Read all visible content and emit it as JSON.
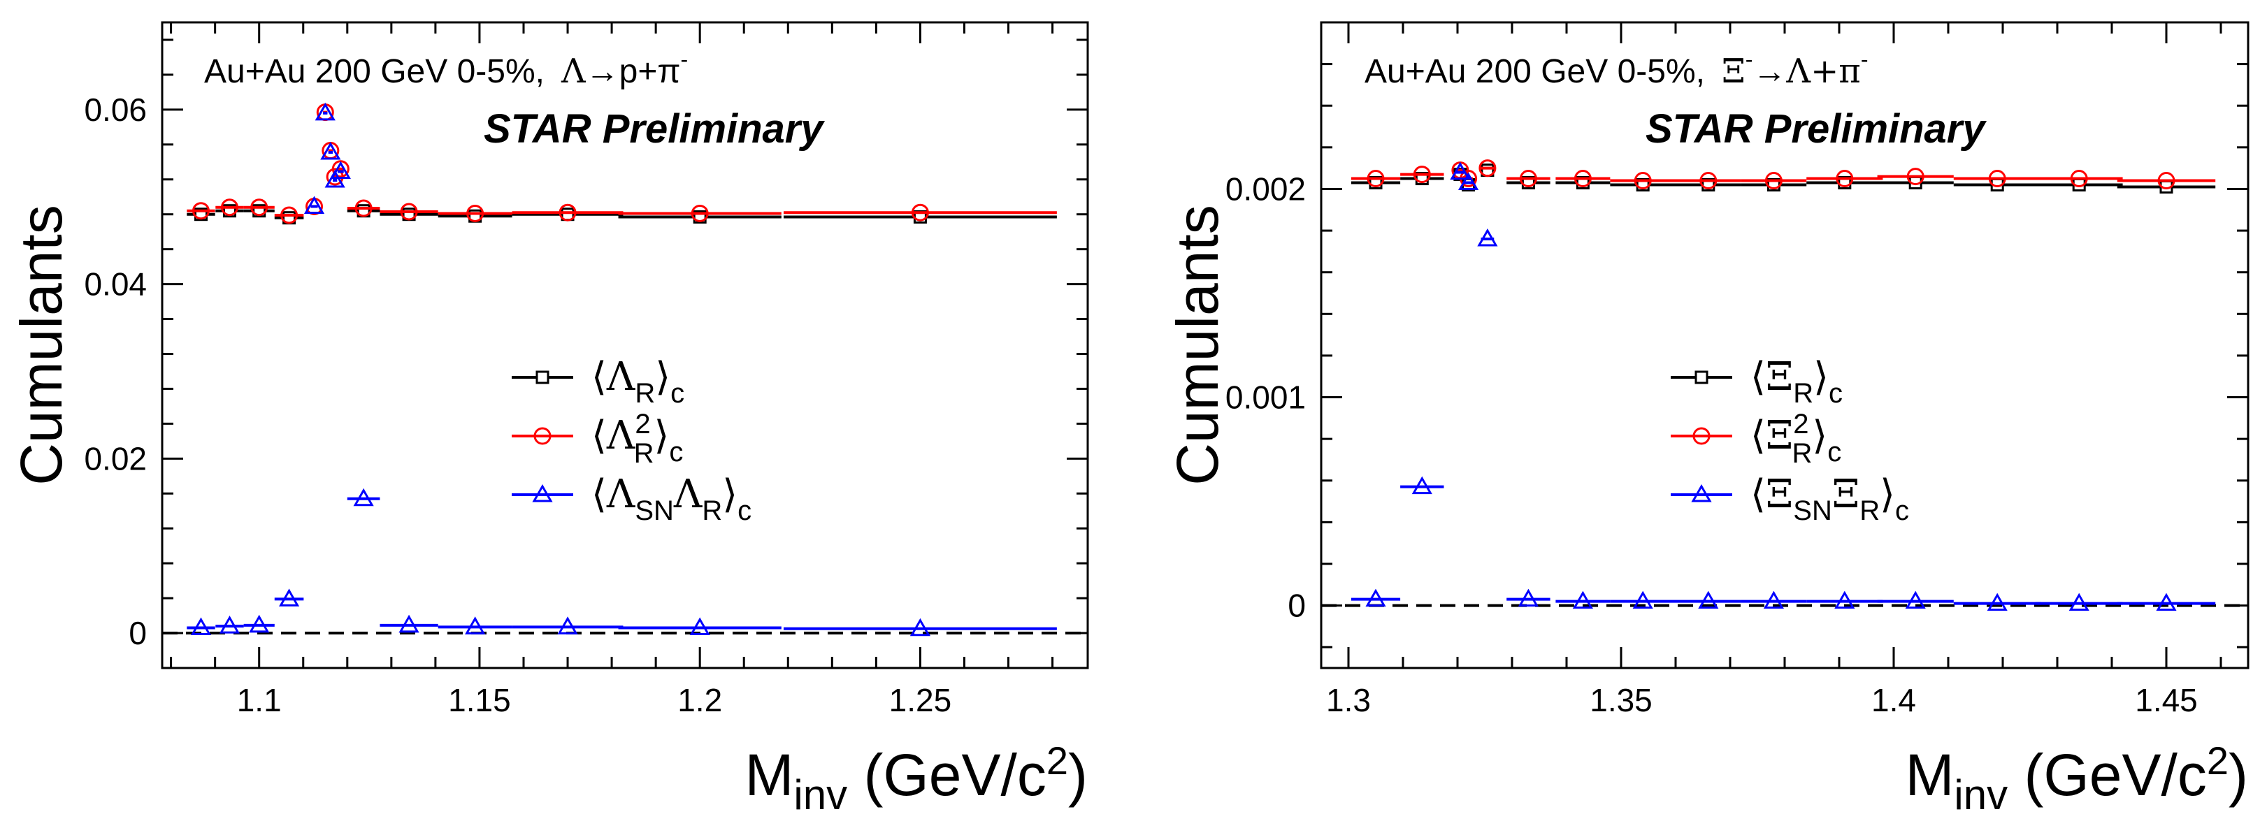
{
  "colors": {
    "black": "#000000",
    "red": "#ff0000",
    "blue": "#0000ff"
  },
  "chart_data": [
    {
      "type": "scatter",
      "ylabel": "Cumulants",
      "xlabel": {
        "main": "M",
        "sub": "inv",
        "units": " (GeV/c",
        "sup": "2",
        "close": ")"
      },
      "info": {
        "prefix": "Au+Au 200 GeV 0-5%,",
        "decay_parent": "Λ",
        "arrow": "→",
        "decay_products": "p+π",
        "superscript": "-"
      },
      "preliminary": "STAR Preliminary",
      "xlim": [
        1.078,
        1.288
      ],
      "ylim": [
        -0.004,
        0.07
      ],
      "xticks": [
        1.1,
        1.15,
        1.2,
        1.25
      ],
      "xtick_labels": [
        "1.1",
        "1.15",
        "1.2",
        "1.25"
      ],
      "yticks": [
        0,
        0.02,
        0.04,
        0.06
      ],
      "ytick_labels": [
        "0",
        "0.02",
        "0.04",
        "0.06"
      ],
      "reference_line": 0,
      "legend": [
        {
          "series": "s1",
          "open": "⟨",
          "base": "Λ",
          "sub": "R",
          "sup": "",
          "base2": "",
          "sub2": "",
          "close": "⟩",
          "csub": "c"
        },
        {
          "series": "s2",
          "open": "⟨",
          "base": "Λ",
          "sub": "R",
          "sup": "2",
          "base2": "",
          "sub2": "",
          "close": "⟩",
          "csub": "c"
        },
        {
          "series": "s3",
          "open": "⟨",
          "base": "Λ",
          "sub": "SN",
          "sup": "",
          "base2": "Λ",
          "sub2": "R",
          "close": "⟩",
          "csub": "c"
        }
      ],
      "series": [
        {
          "id": "s1",
          "name": "⟨Λ_R⟩_c",
          "marker": "square",
          "color": "#000000",
          "x": [
            1.0868,
            1.0933,
            1.1,
            1.1068,
            1.1237,
            1.134,
            1.149,
            1.17,
            1.2,
            1.25
          ],
          "xerr": [
            0.0032,
            0.0032,
            0.0035,
            0.0033,
            0.0037,
            0.0066,
            0.0084,
            0.0126,
            0.0185,
            0.031
          ],
          "y": [
            0.048,
            0.0484,
            0.0484,
            0.0476,
            0.0484,
            0.048,
            0.0478,
            0.048,
            0.0477,
            0.0477
          ]
        },
        {
          "id": "s2",
          "name": "⟨Λ_R²⟩_c",
          "marker": "circle",
          "color": "#ff0000",
          "x": [
            1.0868,
            1.0933,
            1.1,
            1.1068,
            1.1125,
            1.115,
            1.1162,
            1.1172,
            1.1185,
            1.1237,
            1.134,
            1.149,
            1.17,
            1.2,
            1.25
          ],
          "xerr": [
            0.0032,
            0.0032,
            0.0035,
            0.0033,
            0.0008,
            0.0005,
            0.0005,
            0.0005,
            0.0007,
            0.0037,
            0.0066,
            0.0084,
            0.0126,
            0.0185,
            0.031
          ],
          "y": [
            0.0484,
            0.0488,
            0.0488,
            0.0479,
            0.0489,
            0.0597,
            0.0553,
            0.0523,
            0.0532,
            0.0487,
            0.0483,
            0.0481,
            0.0482,
            0.0481,
            0.0482
          ]
        },
        {
          "id": "s3",
          "name": "⟨Λ_SN Λ_R⟩_c",
          "marker": "triangle",
          "color": "#0000ff",
          "x": [
            1.0868,
            1.0933,
            1.1,
            1.1068,
            1.1125,
            1.115,
            1.1162,
            1.1172,
            1.1185,
            1.1237,
            1.134,
            1.149,
            1.17,
            1.2,
            1.25
          ],
          "xerr": [
            0.0032,
            0.0032,
            0.0035,
            0.0033,
            0.0008,
            0.0005,
            0.0005,
            0.0005,
            0.0007,
            0.0037,
            0.0066,
            0.0084,
            0.0126,
            0.0185,
            0.031
          ],
          "y": [
            0.0006,
            0.0008,
            0.0009,
            0.0039,
            0.0489,
            0.0596,
            0.0551,
            0.0519,
            0.0529,
            0.0154,
            0.0009,
            0.0007,
            0.0007,
            0.0006,
            0.0005
          ]
        }
      ]
    },
    {
      "type": "scatter",
      "ylabel": "Cumulants",
      "xlabel": {
        "main": "M",
        "sub": "inv",
        "units": " (GeV/c",
        "sup": "2",
        "close": ")"
      },
      "info": {
        "prefix": "Au+Au 200 GeV 0-5%,",
        "decay_parent": "Ξ",
        "decay_parent_sup": "-",
        "arrow": "→",
        "decay_products": "Λ+π",
        "superscript": "-"
      },
      "preliminary": "STAR Preliminary",
      "xlim": [
        1.295,
        1.465
      ],
      "ylim": [
        -0.0003,
        0.0028
      ],
      "xticks": [
        1.3,
        1.35,
        1.4,
        1.45
      ],
      "xtick_labels": [
        "1.3",
        "1.35",
        "1.4",
        "1.45"
      ],
      "yticks": [
        0,
        0.001,
        0.002
      ],
      "ytick_labels": [
        "0",
        "0.001",
        "0.002"
      ],
      "reference_line": 0,
      "legend": [
        {
          "series": "t1",
          "open": "⟨",
          "base": "Ξ",
          "sub": "R",
          "sup": "",
          "base2": "",
          "sub2": "",
          "close": "⟩",
          "csub": "c"
        },
        {
          "series": "t2",
          "open": "⟨",
          "base": "Ξ",
          "sub": "R",
          "sup": "2",
          "base2": "",
          "sub2": "",
          "close": "⟩",
          "csub": "c"
        },
        {
          "series": "t3",
          "open": "⟨",
          "base": "Ξ",
          "sub": "SN",
          "sup": "",
          "base2": "Ξ",
          "sub2": "R",
          "close": "⟩",
          "csub": "c"
        }
      ],
      "series": [
        {
          "id": "t1",
          "name": "⟨Ξ_R⟩_c",
          "marker": "square",
          "color": "#000000",
          "x": [
            1.305,
            1.3135,
            1.3205,
            1.322,
            1.3255,
            1.333,
            1.343,
            1.354,
            1.366,
            1.378,
            1.391,
            1.404,
            1.419,
            1.434,
            1.45
          ],
          "xerr": [
            0.0045,
            0.004,
            0.0008,
            0.0008,
            0.0012,
            0.004,
            0.005,
            0.006,
            0.006,
            0.006,
            0.007,
            0.007,
            0.008,
            0.008,
            0.009
          ],
          "y": [
            0.00203,
            0.00205,
            0.00207,
            0.00202,
            0.00209,
            0.00203,
            0.00203,
            0.00202,
            0.00202,
            0.00202,
            0.00203,
            0.00203,
            0.00202,
            0.00202,
            0.00201
          ]
        },
        {
          "id": "t2",
          "name": "⟨Ξ_R²⟩_c",
          "marker": "circle",
          "color": "#ff0000",
          "x": [
            1.305,
            1.3135,
            1.3205,
            1.322,
            1.3255,
            1.333,
            1.343,
            1.354,
            1.366,
            1.378,
            1.391,
            1.404,
            1.419,
            1.434,
            1.45
          ],
          "xerr": [
            0.0045,
            0.004,
            0.0008,
            0.0008,
            0.0012,
            0.004,
            0.005,
            0.006,
            0.006,
            0.006,
            0.007,
            0.007,
            0.008,
            0.008,
            0.009
          ],
          "y": [
            0.00205,
            0.00207,
            0.00209,
            0.00205,
            0.0021,
            0.00205,
            0.00205,
            0.00204,
            0.00204,
            0.00204,
            0.00205,
            0.00206,
            0.00205,
            0.00205,
            0.00204
          ]
        },
        {
          "id": "t3",
          "name": "⟨Ξ_SN Ξ_R⟩_c",
          "marker": "triangle",
          "color": "#0000ff",
          "x": [
            1.305,
            1.3135,
            1.3205,
            1.322,
            1.3255,
            1.333,
            1.343,
            1.354,
            1.366,
            1.378,
            1.391,
            1.404,
            1.419,
            1.434,
            1.45
          ],
          "xerr": [
            0.0045,
            0.004,
            0.0008,
            0.0008,
            0.0012,
            0.004,
            0.005,
            0.006,
            0.006,
            0.006,
            0.007,
            0.007,
            0.008,
            0.008,
            0.009
          ],
          "y": [
            3e-05,
            0.00057,
            0.00208,
            0.00203,
            0.00176,
            3e-05,
            2e-05,
            2e-05,
            2e-05,
            2e-05,
            2e-05,
            2e-05,
            1e-05,
            1e-05,
            1e-05
          ]
        }
      ]
    }
  ]
}
